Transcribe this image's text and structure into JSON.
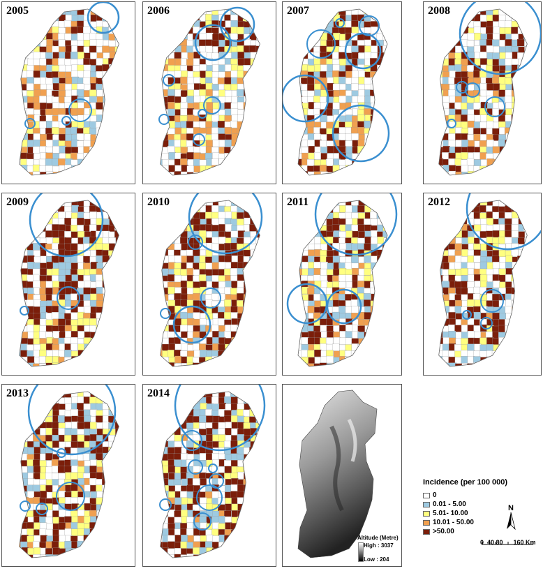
{
  "panels": [
    {
      "year": "2005"
    },
    {
      "year": "2006"
    },
    {
      "year": "2007"
    },
    {
      "year": "2008"
    },
    {
      "year": "2009"
    },
    {
      "year": "2010"
    },
    {
      "year": "2011"
    },
    {
      "year": "2012"
    },
    {
      "year": "2013"
    },
    {
      "year": "2014"
    }
  ],
  "legend": {
    "title": "Incidence (per 100 000)",
    "items": [
      {
        "label": "0",
        "color": "#ffffff"
      },
      {
        "label": "0.01 - 5.00",
        "color": "#9ecae1"
      },
      {
        "label": "5.01- 10.00",
        "color": "#ffff80"
      },
      {
        "label": "10.01 - 50.00",
        "color": "#f0a050"
      },
      {
        "label": ">50.00",
        "color": "#7b1e0a"
      }
    ]
  },
  "north_label": "N",
  "scale": {
    "labels": "0  40 80      160 Km"
  },
  "altitude": {
    "title": "Altitude (Metre)",
    "high": "High : 3037",
    "low": "Low : 204"
  },
  "cluster_color": "#3a8fd0"
}
